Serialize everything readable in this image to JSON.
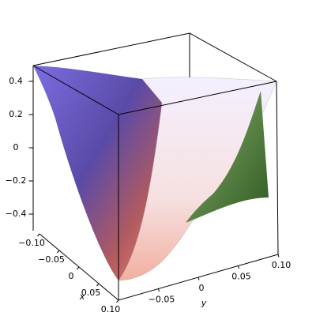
{
  "chart_data": {
    "type": "surface3d",
    "x_label": "x",
    "y_label": "y",
    "xlim": [
      -0.1,
      0.1
    ],
    "xticks": [
      {
        "value": -0.1,
        "label": "−0.10"
      },
      {
        "value": -0.05,
        "label": "−0.05"
      },
      0,
      0.05,
      {
        "value": 0.1,
        "label": "0.10"
      }
    ],
    "ylim": [
      -0.1,
      0.1
    ],
    "yticks": [
      {
        "value": -0.05,
        "label": "−0.05"
      },
      0,
      0.05,
      {
        "value": 0.1,
        "label": "0.10"
      }
    ],
    "zlim": [
      -0.5,
      0.5
    ],
    "zticks": [
      {
        "value": -0.4,
        "label": "−0.4"
      },
      {
        "value": -0.2,
        "label": "−0.2"
      },
      0,
      0.2,
      0.4
    ]
  }
}
